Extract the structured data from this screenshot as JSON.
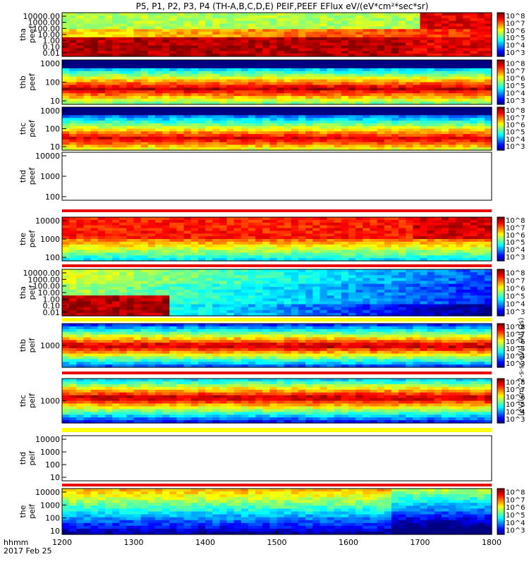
{
  "chart_data": {
    "type": "heatmap",
    "title": "P5, P1, P2, P3, P4 (TH-A,B,C,D,E) PEIF,PEEF EFlux eV/(eV*cm²*sec*sr)",
    "xlabel": "hhmm",
    "date_label": "2017 Feb 25",
    "x_ticks": [
      "1200",
      "1300",
      "1400",
      "1500",
      "1600",
      "1700",
      "1800"
    ],
    "x_range": [
      "1200",
      "1800"
    ],
    "colorbar_unit": "eV/(cm^2-s-sr-eV)",
    "colorbar_unit_right": "[eV/(cm^2-s-sr-eV)] (All Qs)",
    "colorbar_ticks": [
      "10^3",
      "10^4",
      "10^5",
      "10^6",
      "10^7",
      "10^8"
    ],
    "colors": {
      "high": "#c00000",
      "low": "#0000a0",
      "overlay": "#000000",
      "band": "#e60000",
      "band_yellow": "#ffff00"
    },
    "panels": [
      {
        "label": "tha peef",
        "y_ticks": [
          "10000.00",
          "1000.00",
          "100.00",
          "10.00",
          "1.00",
          "0.10",
          "0.01"
        ],
        "has_data": true
      },
      {
        "label": "thb peef",
        "y_ticks": [
          "1000",
          "100",
          "10"
        ],
        "has_data": true
      },
      {
        "label": "thc peef",
        "y_ticks": [
          "1000",
          "100",
          "10"
        ],
        "has_data": true
      },
      {
        "label": "thd peef",
        "y_ticks": [
          "10000",
          "1000",
          "100"
        ],
        "has_data": false
      },
      {
        "label": "the peef",
        "y_ticks": [
          "10000",
          "1000",
          "100"
        ],
        "has_data": true
      },
      {
        "label": "tha peif",
        "y_ticks": [
          "10000.00",
          "1000.00",
          "100.00",
          "10.00",
          "1.00",
          "0.10",
          "0.01"
        ],
        "has_data": true
      },
      {
        "label": "thb peif",
        "y_ticks": [
          "1000"
        ],
        "has_data": true
      },
      {
        "label": "thc peif",
        "y_ticks": [
          "1000"
        ],
        "has_data": true
      },
      {
        "label": "thd peif",
        "y_ticks": [
          "10000",
          "1000",
          "100",
          "10"
        ],
        "has_data": false
      },
      {
        "label": "the peif",
        "y_ticks": [
          "10000",
          "1000",
          "100",
          "10"
        ],
        "has_data": true
      }
    ]
  }
}
